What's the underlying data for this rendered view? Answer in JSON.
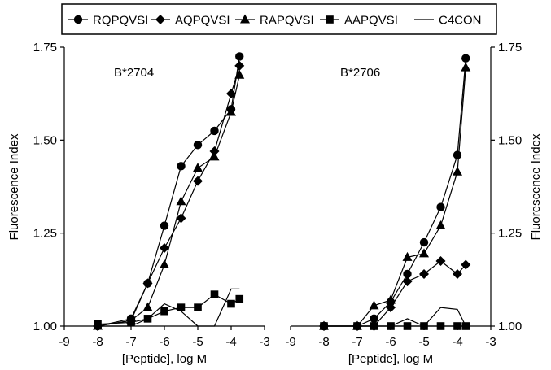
{
  "chart_data": {
    "type": "line",
    "legend": {
      "placement": "top",
      "entries": [
        {
          "name": "RQPQVSI",
          "marker": "circle"
        },
        {
          "name": "AQPQVSI",
          "marker": "diamond"
        },
        {
          "name": "RAPQVSI",
          "marker": "triangle"
        },
        {
          "name": "AAPQVSI",
          "marker": "square"
        },
        {
          "name": "C4CON",
          "marker": "none"
        }
      ]
    },
    "shared_y": {
      "ylabel": "Fluorescence Index",
      "ylim": [
        1.0,
        1.75
      ],
      "yticks": [
        "1.00",
        "1.25",
        "1.50",
        "1.75"
      ],
      "ytick_values": [
        1.0,
        1.25,
        1.5,
        1.75
      ]
    },
    "panels": [
      {
        "title": "B*2704",
        "xlabel": "[Peptide], log M",
        "xlim": [
          -9,
          -3
        ],
        "xticks": [
          "-9",
          "-8",
          "-7",
          "-6",
          "-5",
          "-4",
          "-3"
        ],
        "xtick_values": [
          -9,
          -8,
          -7,
          -6,
          -5,
          -4,
          -3
        ],
        "series": [
          {
            "name": "RQPQVSI",
            "marker": "circle",
            "x": [
              -8,
              -7,
              -6.5,
              -6,
              -5.5,
              -5,
              -4.5,
              -4,
              -3.75
            ],
            "y": [
              1.0,
              1.02,
              1.115,
              1.27,
              1.43,
              1.487,
              1.525,
              1.583,
              1.725
            ]
          },
          {
            "name": "AQPQVSI",
            "marker": "diamond",
            "x": [
              -8,
              -7,
              -6.5,
              -6,
              -5.5,
              -5,
              -4.5,
              -4,
              -3.75
            ],
            "y": [
              1.0,
              1.015,
              1.115,
              1.21,
              1.29,
              1.39,
              1.47,
              1.625,
              1.7
            ]
          },
          {
            "name": "RAPQVSI",
            "marker": "triangle",
            "x": [
              -8,
              -7,
              -6.5,
              -6,
              -5.5,
              -5,
              -4.5,
              -4,
              -3.75
            ],
            "y": [
              1.0,
              1.015,
              1.05,
              1.165,
              1.335,
              1.425,
              1.455,
              1.575,
              1.675
            ]
          },
          {
            "name": "AAPQVSI",
            "marker": "square",
            "x": [
              -8,
              -7,
              -6.5,
              -6,
              -5.5,
              -5,
              -4.5,
              -4,
              -3.75
            ],
            "y": [
              1.005,
              1.01,
              1.02,
              1.04,
              1.05,
              1.05,
              1.085,
              1.06,
              1.073
            ]
          },
          {
            "name": "C4CON",
            "marker": "none",
            "x": [
              -8,
              -7,
              -6.5,
              -6,
              -5.5,
              -5,
              -4.5,
              -4,
              -3.75
            ],
            "y": [
              1.0,
              1.0,
              1.02,
              1.06,
              1.04,
              1.0,
              1.0,
              1.1,
              1.1
            ]
          }
        ]
      },
      {
        "title": "B*2706",
        "xlabel": "[Peptide], log M",
        "xlim": [
          -9,
          -3
        ],
        "xticks": [
          "-9",
          "-8",
          "-7",
          "-6",
          "-5",
          "-4",
          "-3"
        ],
        "xtick_values": [
          -9,
          -8,
          -7,
          -6,
          -5,
          -4,
          -3
        ],
        "series": [
          {
            "name": "RQPQVSI",
            "marker": "circle",
            "x": [
              -8,
              -7,
              -6.5,
              -6,
              -5.5,
              -5,
              -4.5,
              -4,
              -3.75
            ],
            "y": [
              1.0,
              1.0,
              1.02,
              1.065,
              1.14,
              1.225,
              1.32,
              1.46,
              1.72
            ]
          },
          {
            "name": "AQPQVSI",
            "marker": "diamond",
            "x": [
              -8,
              -7,
              -6.5,
              -6,
              -5.5,
              -5,
              -4.5,
              -4,
              -3.75
            ],
            "y": [
              1.0,
              1.0,
              1.0,
              1.05,
              1.12,
              1.14,
              1.175,
              1.14,
              1.165
            ]
          },
          {
            "name": "RAPQVSI",
            "marker": "triangle",
            "x": [
              -8,
              -7,
              -6.5,
              -6,
              -5.5,
              -5,
              -4.5,
              -4,
              -3.75
            ],
            "y": [
              1.0,
              1.0,
              1.055,
              1.07,
              1.185,
              1.195,
              1.27,
              1.415,
              1.695
            ]
          },
          {
            "name": "AAPQVSI",
            "marker": "square",
            "x": [
              -8,
              -7,
              -6.5,
              -6,
              -5.5,
              -5,
              -4.5,
              -4,
              -3.75
            ],
            "y": [
              1.0,
              1.0,
              1.0,
              1.0,
              1.0,
              1.0,
              1.0,
              1.0,
              1.0
            ]
          },
          {
            "name": "C4CON",
            "marker": "none",
            "x": [
              -8,
              -7,
              -6.5,
              -6,
              -5.5,
              -5,
              -4.5,
              -4,
              -3.75
            ],
            "y": [
              1.0,
              1.0,
              1.0,
              1.0,
              1.02,
              1.0,
              1.05,
              1.045,
              1.0
            ]
          }
        ]
      }
    ]
  }
}
